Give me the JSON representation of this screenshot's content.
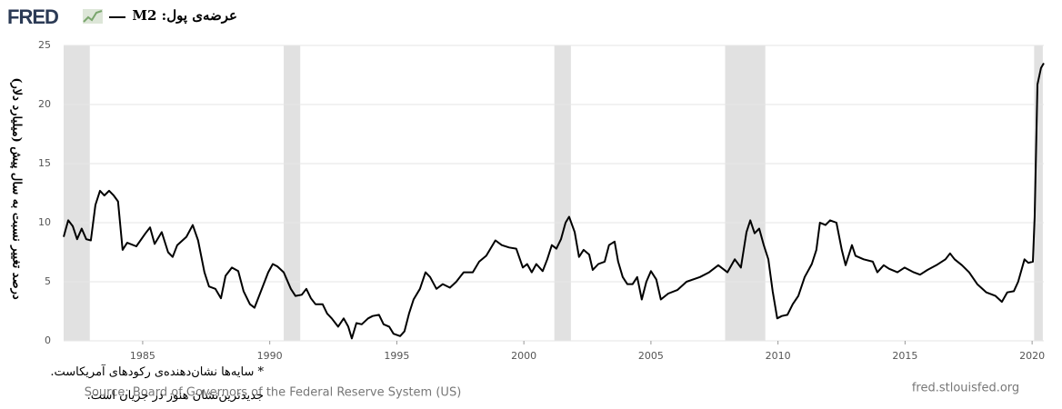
{
  "chart_data": {
    "type": "line",
    "logo": "FRED",
    "y_label": "درصد تغییر نسبت به سال پیش (میلیارد دلار)",
    "note_lines": [
      "* سایه‌ها نشان‌دهنده‌ی رکودهای آمریکاست.",
      "جدیدترین‌نشان هنوز در جریان است."
    ],
    "source": "Source: Board of Governors of the Federal Reserve System (US)",
    "site": "fred.stlouisfed.org",
    "x": [
      1981.89,
      1982.07,
      1982.25,
      1982.42,
      1982.6,
      1982.78,
      1982.96,
      1983.14,
      1983.32,
      1983.49,
      1983.68,
      1983.86,
      1984.03,
      1984.21,
      1984.39,
      1984.75,
      1985.11,
      1985.29,
      1985.47,
      1985.75,
      1986.0,
      1986.18,
      1986.36,
      1986.72,
      1986.97,
      1987.18,
      1987.43,
      1987.61,
      1987.86,
      1988.08,
      1988.26,
      1988.51,
      1988.76,
      1988.97,
      1989.22,
      1989.4,
      1989.69,
      1989.94,
      1990.12,
      1990.3,
      1990.55,
      1990.83,
      1991.01,
      1991.26,
      1991.44,
      1991.62,
      1991.8,
      1992.08,
      1992.26,
      1992.44,
      1992.69,
      1992.91,
      1993.09,
      1993.23,
      1993.41,
      1993.62,
      1993.87,
      1994.05,
      1994.3,
      1994.48,
      1994.7,
      1994.87,
      1995.13,
      1995.3,
      1995.48,
      1995.66,
      1995.91,
      1996.13,
      1996.31,
      1996.56,
      1996.81,
      1997.09,
      1997.34,
      1997.63,
      1997.99,
      1998.24,
      1998.52,
      1998.88,
      1999.13,
      1999.42,
      1999.7,
      1999.96,
      2000.13,
      2000.31,
      2000.49,
      2000.74,
      2000.92,
      2001.1,
      2001.28,
      2001.46,
      2001.64,
      2001.78,
      2002.0,
      2002.17,
      2002.35,
      2002.57,
      2002.71,
      2002.93,
      2003.18,
      2003.35,
      2003.57,
      2003.71,
      2003.89,
      2004.07,
      2004.28,
      2004.46,
      2004.64,
      2004.82,
      2005.0,
      2005.21,
      2005.39,
      2005.68,
      2006.04,
      2006.4,
      2006.93,
      2007.29,
      2007.65,
      2008.01,
      2008.3,
      2008.54,
      2008.76,
      2008.91,
      2009.08,
      2009.26,
      2009.44,
      2009.62,
      2009.79,
      2009.97,
      2010.15,
      2010.37,
      2010.58,
      2010.8,
      2011.05,
      2011.33,
      2011.51,
      2011.65,
      2011.87,
      2012.05,
      2012.3,
      2012.51,
      2012.66,
      2012.91,
      2013.05,
      2013.37,
      2013.73,
      2013.91,
      2014.16,
      2014.37,
      2014.7,
      2014.98,
      2015.34,
      2015.59,
      2015.88,
      2016.23,
      2016.59,
      2016.77,
      2016.95,
      2017.24,
      2017.52,
      2017.84,
      2018.2,
      2018.56,
      2018.81,
      2019.02,
      2019.28,
      2019.45,
      2019.7,
      2019.85,
      2020.03,
      2020.1,
      2020.21,
      2020.35,
      2020.46
    ],
    "series": [
      {
        "name": "عرضه‌ی پول: M2",
        "color": "#000000",
        "values": [
          8.8,
          10.2,
          9.7,
          8.6,
          9.5,
          8.6,
          8.5,
          11.5,
          12.7,
          12.3,
          12.7,
          12.3,
          11.8,
          7.7,
          8.3,
          8.0,
          9.1,
          9.6,
          8.2,
          9.2,
          7.5,
          7.1,
          8.1,
          8.8,
          9.8,
          8.5,
          5.8,
          4.6,
          4.4,
          3.6,
          5.5,
          6.2,
          5.9,
          4.2,
          3.1,
          2.8,
          4.4,
          5.8,
          6.5,
          6.3,
          5.8,
          4.4,
          3.8,
          3.9,
          4.4,
          3.6,
          3.1,
          3.1,
          2.3,
          1.9,
          1.2,
          1.9,
          1.2,
          0.2,
          1.5,
          1.4,
          1.9,
          2.1,
          2.2,
          1.4,
          1.2,
          0.6,
          0.4,
          0.8,
          2.3,
          3.5,
          4.4,
          5.8,
          5.4,
          4.4,
          4.8,
          4.5,
          5.0,
          5.8,
          5.8,
          6.7,
          7.2,
          8.5,
          8.1,
          7.9,
          7.8,
          6.2,
          6.5,
          5.8,
          6.5,
          5.9,
          6.9,
          8.1,
          7.8,
          8.6,
          10.0,
          10.5,
          9.2,
          7.1,
          7.7,
          7.3,
          6.0,
          6.5,
          6.7,
          8.1,
          8.4,
          6.7,
          5.4,
          4.8,
          4.8,
          5.4,
          3.5,
          5.0,
          5.9,
          5.2,
          3.5,
          4.0,
          4.3,
          5.0,
          5.4,
          5.8,
          6.4,
          5.8,
          6.9,
          6.2,
          9.2,
          10.2,
          9.1,
          9.5,
          8.1,
          6.9,
          4.2,
          1.9,
          2.1,
          2.2,
          3.1,
          3.8,
          5.4,
          6.5,
          7.7,
          10.0,
          9.8,
          10.2,
          10.0,
          7.7,
          6.4,
          8.1,
          7.2,
          6.9,
          6.7,
          5.8,
          6.4,
          6.1,
          5.8,
          6.2,
          5.8,
          5.6,
          6.0,
          6.4,
          6.9,
          7.4,
          6.9,
          6.4,
          5.8,
          4.8,
          4.1,
          3.8,
          3.3,
          4.1,
          4.2,
          5.0,
          6.9,
          6.6,
          6.7,
          10.5,
          21.7,
          23.1,
          23.5
        ]
      }
    ],
    "recessions": [
      [
        1981.89,
        1982.92
      ],
      [
        1990.55,
        1991.2
      ],
      [
        2001.2,
        2001.85
      ],
      [
        2007.92,
        2009.5
      ],
      [
        2020.08,
        2020.42
      ]
    ],
    "recession_color": "#e1e1e1",
    "xlim": [
      1981.89,
      2020.46
    ],
    "xticks": [
      1985,
      1990,
      1995,
      2000,
      2005,
      2010,
      2015,
      2020
    ],
    "ylim": [
      0,
      25
    ],
    "yticks": [
      0,
      5,
      10,
      15,
      20,
      25
    ],
    "grid": true
  }
}
